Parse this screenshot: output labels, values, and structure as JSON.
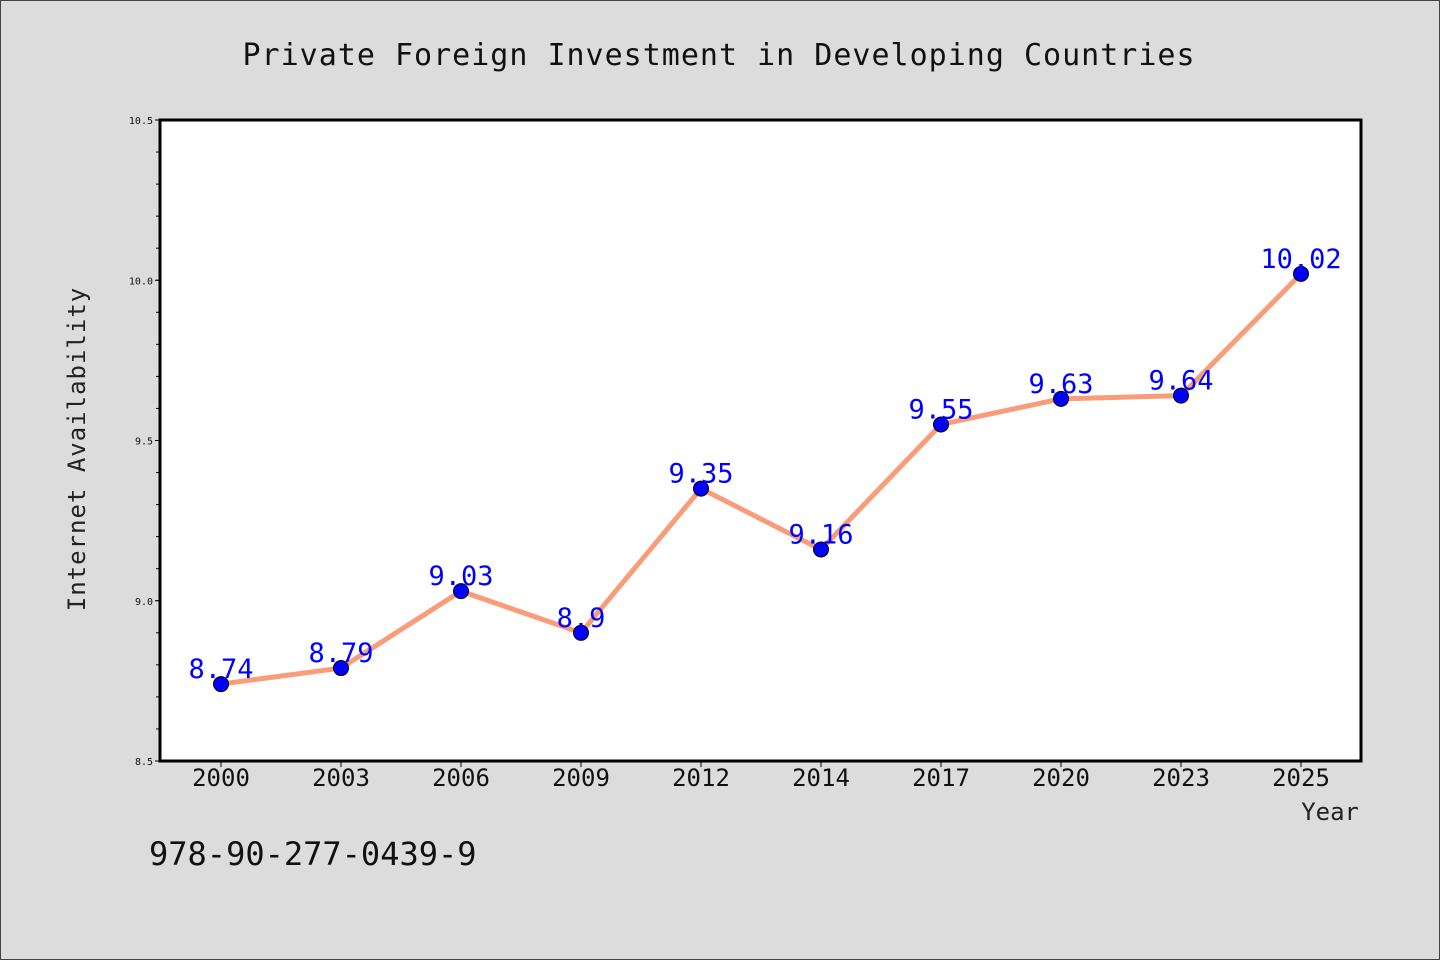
{
  "chart_data": {
    "type": "line",
    "title": "Private Foreign Investment in Developing Countries",
    "xlabel": "Year",
    "ylabel": "Internet Availability",
    "categories": [
      "2000",
      "2003",
      "2006",
      "2009",
      "2012",
      "2014",
      "2017",
      "2020",
      "2023",
      "2025"
    ],
    "series": [
      {
        "values": [
          8.74,
          8.79,
          9.03,
          8.9,
          9.35,
          9.16,
          9.55,
          9.63,
          9.64,
          10.02
        ],
        "labels": [
          "8.74",
          "8.79",
          "9.03",
          "8.9",
          "9.35",
          "9.16",
          "9.55",
          "9.63",
          "9.64",
          "10.02"
        ]
      }
    ],
    "ylim": [
      8.5,
      10.5
    ],
    "yticks": [
      "8.5",
      "9.0",
      "9.5",
      "10.0",
      "10.5"
    ],
    "grid": false,
    "colors": {
      "line": "#f89c7a",
      "marker": "#0000ff",
      "label": "#0000ff",
      "background": "#dcdcdc",
      "plot_background": "#ffffff"
    }
  },
  "footer": {
    "code": "978-90-277-0439-9"
  }
}
